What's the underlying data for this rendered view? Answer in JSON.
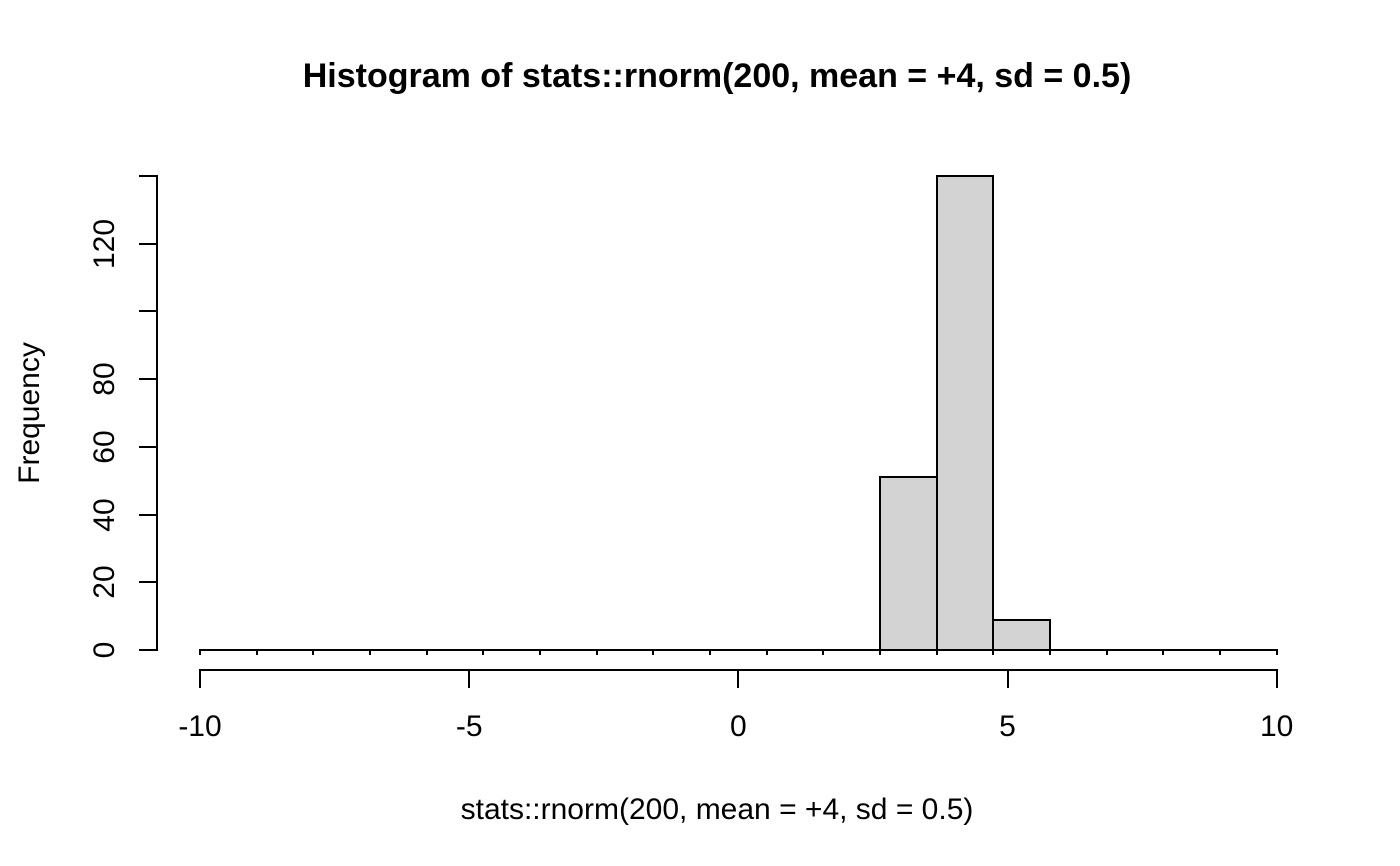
{
  "page": {
    "background": "#ffffff"
  },
  "chart_data": {
    "type": "bar",
    "subtype": "histogram",
    "title": "Histogram of stats::rnorm(200, mean = +4, sd = 0.5)",
    "xlabel": "stats::rnorm(200, mean = +4, sd = 0.5)",
    "ylabel": "Frequency",
    "xlim": [
      -10,
      10
    ],
    "ylim": [
      0,
      140
    ],
    "x_ticks": [
      -10,
      -5,
      0,
      5,
      10
    ],
    "x_tick_labels": [
      "-10",
      "-5",
      "0",
      "5",
      "10"
    ],
    "y_ticks": [
      0,
      20,
      40,
      60,
      80,
      100,
      120,
      140
    ],
    "y_tick_labels": [
      "0",
      "20",
      "40",
      "60",
      "80",
      "",
      "120",
      ""
    ],
    "n_bins": 19,
    "break_start": -10,
    "break_end": 10,
    "counts": [
      0,
      0,
      0,
      0,
      0,
      0,
      0,
      0,
      0,
      0,
      0,
      0,
      51,
      140,
      9,
      0,
      0,
      0,
      0
    ],
    "total_n": 200,
    "nonzero_bins": [
      {
        "from": 2.63,
        "to": 3.68,
        "count": 51
      },
      {
        "from": 3.68,
        "to": 4.74,
        "count": 140
      },
      {
        "from": 4.74,
        "to": 5.79,
        "count": 9
      }
    ],
    "bar_fill": "#d3d3d3",
    "bar_border": "#000000",
    "axis_color": "#000000",
    "grid": false,
    "legend_position": "none"
  }
}
